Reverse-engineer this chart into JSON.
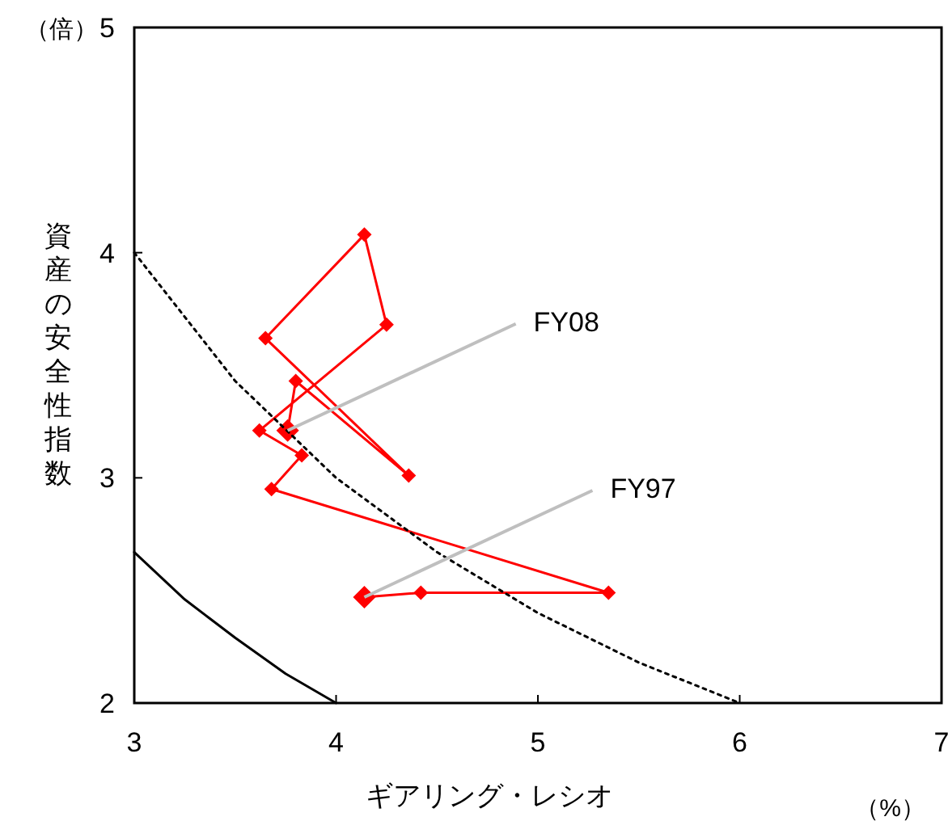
{
  "chart_data": {
    "type": "line",
    "xlabel": "ギアリング・レシオ",
    "ylabel": "資産の安全性指数",
    "xlim": [
      3,
      7
    ],
    "ylim": [
      2,
      5
    ],
    "xticks": [
      3,
      4,
      5,
      6,
      7
    ],
    "yticks": [
      2,
      3,
      4,
      5
    ],
    "grid": false,
    "marker": "diamond",
    "line_style": "solid",
    "annotations": [
      "（倍）",
      "（%）",
      {
        "text": "FY08",
        "x": 3.76,
        "y": 3.21
      },
      {
        "text": "FY97",
        "x": 4.14,
        "y": 2.47
      }
    ],
    "series": [
      {
        "color": "#ff0000",
        "x": [
          4.14,
          4.42,
          5.35,
          3.68,
          3.83,
          3.62,
          4.25,
          4.14,
          3.65,
          4.36,
          3.8,
          3.76
        ],
        "values": [
          2.47,
          2.49,
          2.49,
          2.95,
          3.1,
          3.21,
          3.68,
          4.08,
          3.62,
          3.01,
          3.43,
          3.21
        ]
      },
      {
        "color": "#000000",
        "marker": "none",
        "line_style": "dotted",
        "x": [
          3,
          3.5,
          4,
          4.5,
          5,
          5.5,
          6
        ],
        "values": [
          4,
          3.43,
          3,
          2.67,
          2.4,
          2.18,
          2
        ]
      },
      {
        "color": "#000000",
        "marker": "none",
        "line_style": "solid",
        "x": [
          3,
          3.25,
          3.5,
          3.75,
          4
        ],
        "values": [
          2.67,
          2.46,
          2.29,
          2.13,
          2
        ]
      }
    ]
  }
}
